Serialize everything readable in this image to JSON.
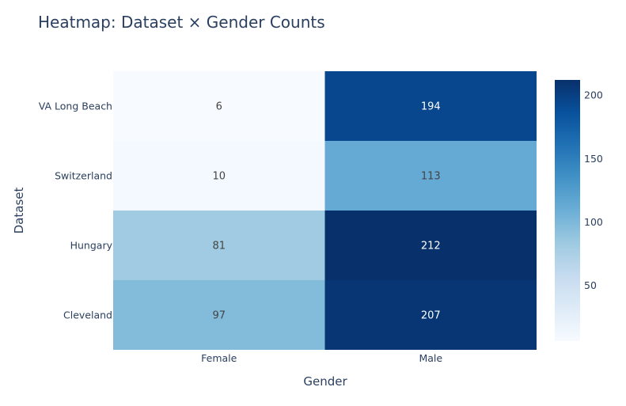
{
  "chart_data": {
    "type": "heatmap",
    "title": "Heatmap: Dataset × Gender Counts",
    "xlabel": "Gender",
    "ylabel": "Dataset",
    "x": [
      "Female",
      "Male"
    ],
    "y": [
      "Cleveland",
      "Hungary",
      "Switzerland",
      "VA Long Beach"
    ],
    "z": [
      [
        97,
        207
      ],
      [
        81,
        212
      ],
      [
        10,
        113
      ],
      [
        6,
        194
      ]
    ],
    "zmin": 6,
    "zmax": 212,
    "colorscale": "Blues",
    "colors": [
      "#f7fbff",
      "#deebf7",
      "#c6dbef",
      "#9ecae1",
      "#6baed6",
      "#4292c6",
      "#2171b5",
      "#08519c",
      "#08306b"
    ],
    "colorbar_ticks": [
      50,
      100,
      150,
      200
    ],
    "show_cell_text": true
  }
}
